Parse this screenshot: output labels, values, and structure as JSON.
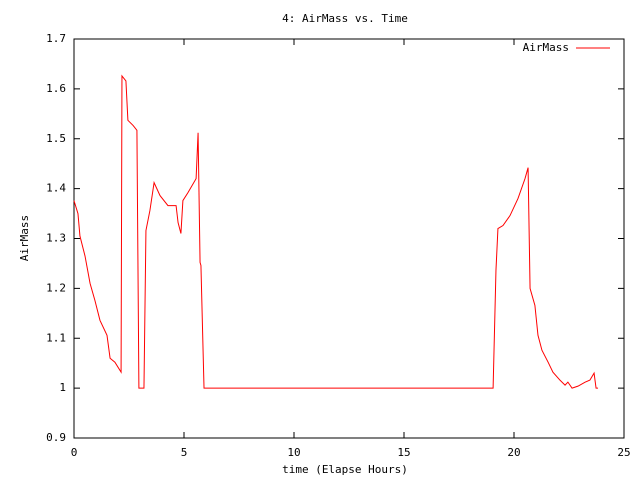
{
  "chart_data": {
    "type": "line",
    "title": "4: AirMass vs. Time",
    "x_label": "time (Elapse Hours)",
    "y_label": "AirMass",
    "x": [
      0,
      0.18,
      0.27,
      0.5,
      0.73,
      0.95,
      1.18,
      1.5,
      1.64,
      1.86,
      2.14,
      2.18,
      2.36,
      2.45,
      2.68,
      2.86,
      2.95,
      3.18,
      3.27,
      3.45,
      3.64,
      3.91,
      4.27,
      4.64,
      4.73,
      4.86,
      4.95,
      5.18,
      5.55,
      5.64,
      5.73,
      5.77,
      5.91,
      19.05,
      19.18,
      19.27,
      19.5,
      19.82,
      20.18,
      20.5,
      20.64,
      20.73,
      20.95,
      21.09,
      21.27,
      21.55,
      21.77,
      22.09,
      22.32,
      22.45,
      22.64,
      22.91,
      23.23,
      23.45,
      23.64,
      23.73,
      23.82
    ],
    "series": [
      {
        "name": "AirMass",
        "color": "#ff0000",
        "values": [
          1.376,
          1.35,
          1.305,
          1.265,
          1.21,
          1.176,
          1.136,
          1.106,
          1.06,
          1.052,
          1.032,
          1.626,
          1.616,
          1.537,
          1.527,
          1.517,
          1.0,
          1.0,
          1.316,
          1.356,
          1.412,
          1.386,
          1.366,
          1.366,
          1.332,
          1.31,
          1.376,
          1.392,
          1.42,
          1.512,
          1.252,
          1.246,
          1.0,
          1.0,
          1.236,
          1.32,
          1.326,
          1.346,
          1.38,
          1.42,
          1.442,
          1.2,
          1.166,
          1.106,
          1.076,
          1.052,
          1.032,
          1.016,
          1.006,
          1.012,
          1.0,
          1.004,
          1.012,
          1.016,
          1.03,
          1.0,
          1.0
        ]
      }
    ],
    "xlim": [
      0,
      25
    ],
    "xticks": [
      0,
      5,
      10,
      15,
      20,
      25
    ],
    "ylim": [
      0.9,
      1.7
    ],
    "yticks": [
      0.9,
      1,
      1.1,
      1.2,
      1.3,
      1.4,
      1.5,
      1.6,
      1.7
    ],
    "legend": "top-right"
  }
}
